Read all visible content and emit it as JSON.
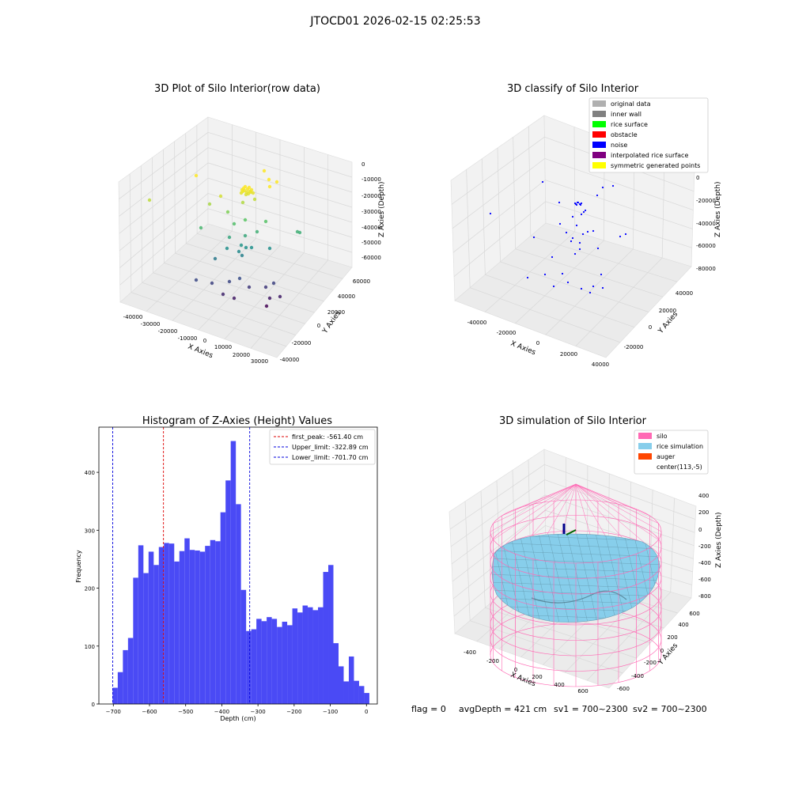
{
  "figure": {
    "suptitle": "JTOCD01 2026-02-15 02:25:53",
    "footer": {
      "flag": "flag = 0",
      "avg": "avgDepth = 421 cm",
      "sv1": "sv1 = 700~2300",
      "sv2": "sv2 = 700~2300"
    }
  },
  "colors": {
    "hist_bar": "#4a4af5",
    "first_peak": "#dd0000",
    "limits": "#0000dd",
    "silo": "#ff69b4",
    "rice": "#87ceeb",
    "auger": "#ff4500",
    "noise": "#0000ff",
    "pane": "#f2f2f2"
  },
  "chart_data": [
    {
      "type": "scatter",
      "title": "3D Plot of Silo Interior(row data)",
      "projection": "3d",
      "xlabel": "X Axies",
      "ylabel": "Y Axies",
      "zlabel": "Z Axies (Depth)",
      "x_ticks": [
        "-40000",
        "-30000",
        "-20000",
        "-10000",
        "0",
        "10000",
        "20000",
        "30000"
      ],
      "y_ticks": [
        "-40000",
        "-20000",
        "0",
        "20000",
        "40000",
        "60000"
      ],
      "z_ticks": [
        "0",
        "-10000",
        "-20000",
        "-30000",
        "-40000",
        "-50000",
        "-60000"
      ],
      "colormap": "viridis",
      "grid": true
    },
    {
      "type": "scatter",
      "title": "3D classify of Silo Interior",
      "projection": "3d",
      "xlabel": "X Axies",
      "ylabel": "Y Axies",
      "zlabel": "Z Axies (Depth)",
      "x_ticks": [
        "-40000",
        "-20000",
        "0",
        "20000",
        "40000"
      ],
      "y_ticks": [
        "-20000",
        "0",
        "20000",
        "40000"
      ],
      "z_ticks": [
        "0",
        "-20000",
        "-40000",
        "-60000",
        "-80000"
      ],
      "legend_position": "top-right",
      "legend": [
        {
          "label": "original data",
          "color": "#b0b0b0"
        },
        {
          "label": "inner wall",
          "color": "#808080"
        },
        {
          "label": "rice surface",
          "color": "#00ff00"
        },
        {
          "label": "obstacle",
          "color": "#ff0000"
        },
        {
          "label": "noise",
          "color": "#0000ff"
        },
        {
          "label": "interpolated rice surface",
          "color": "#800080"
        },
        {
          "label": "symmetric generated points",
          "color": "#ffff00"
        }
      ],
      "grid": true
    },
    {
      "type": "bar",
      "title": "Histogram of Z-Axies (Height) Values",
      "xlabel": "Depth (cm)",
      "ylabel": "Frequency",
      "xlim": [
        -740,
        30
      ],
      "ylim": [
        0,
        478
      ],
      "x_ticks": [
        -700,
        -600,
        -500,
        -400,
        -300,
        -200,
        -100,
        0
      ],
      "y_ticks": [
        0,
        100,
        200,
        300,
        400
      ],
      "bin_start": -702,
      "bin_width": 14.2,
      "values": [
        28,
        55,
        93,
        114,
        218,
        274,
        226,
        263,
        240,
        271,
        278,
        277,
        246,
        264,
        286,
        266,
        265,
        263,
        273,
        283,
        281,
        331,
        386,
        454,
        345,
        197,
        126,
        129,
        147,
        143,
        150,
        147,
        133,
        142,
        136,
        165,
        158,
        170,
        167,
        162,
        167,
        228,
        240,
        105,
        65,
        39,
        82,
        40,
        31,
        19
      ],
      "legend_position": "top-right",
      "lines": [
        {
          "label": "first_peak: -561.40 cm",
          "x": -561.4,
          "style": "red"
        },
        {
          "label": "Upper_limit: -322.89 cm",
          "x": -322.89,
          "style": "blue"
        },
        {
          "label": "Lower_limit: -701.70 cm",
          "x": -701.7,
          "style": "blue"
        }
      ]
    },
    {
      "type": "surface",
      "title": "3D simulation of Silo Interior",
      "projection": "3d",
      "xlabel": "X Axies",
      "ylabel": "Y Axies",
      "zlabel": "Z Axies (Depth)",
      "x_ticks": [
        "-400",
        "-200",
        "0",
        "200",
        "400",
        "600"
      ],
      "y_ticks": [
        "-600",
        "-400",
        "-200",
        "0",
        "200",
        "400",
        "600"
      ],
      "z_ticks": [
        "400",
        "200",
        "0",
        "-200",
        "-400",
        "-600",
        "-800"
      ],
      "legend_position": "top-right",
      "legend": [
        {
          "label": "silo",
          "color": "#ff69b4"
        },
        {
          "label": "rice simulation",
          "color": "#87ceeb"
        },
        {
          "label": "auger",
          "color": "#ff4500"
        },
        {
          "label": "center(113,-5)",
          "color": "#ffffff"
        }
      ]
    }
  ]
}
